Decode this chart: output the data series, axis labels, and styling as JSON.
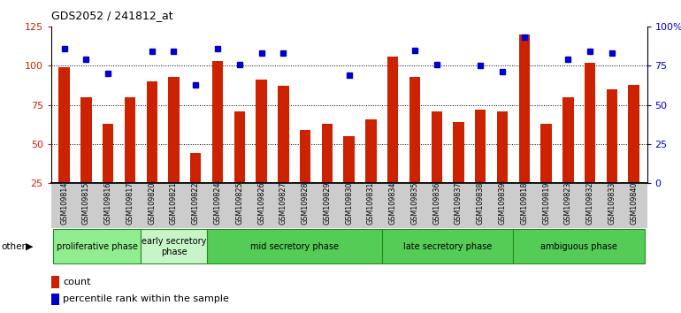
{
  "title": "GDS2052 / 241812_at",
  "samples": [
    "GSM109814",
    "GSM109815",
    "GSM109816",
    "GSM109817",
    "GSM109820",
    "GSM109821",
    "GSM109822",
    "GSM109824",
    "GSM109825",
    "GSM109826",
    "GSM109827",
    "GSM109828",
    "GSM109829",
    "GSM109830",
    "GSM109831",
    "GSM109834",
    "GSM109835",
    "GSM109836",
    "GSM109837",
    "GSM109838",
    "GSM109839",
    "GSM109818",
    "GSM109819",
    "GSM109823",
    "GSM109832",
    "GSM109833",
    "GSM109840"
  ],
  "counts": [
    99,
    80,
    63,
    80,
    90,
    93,
    44,
    103,
    71,
    91,
    87,
    59,
    63,
    55,
    66,
    106,
    93,
    71,
    64,
    72,
    71,
    120,
    63,
    80,
    102,
    85,
    88
  ],
  "percentiles": [
    86,
    79,
    70,
    null,
    84,
    84,
    63,
    86,
    76,
    83,
    83,
    null,
    null,
    69,
    null,
    null,
    85,
    76,
    null,
    75,
    71,
    93,
    null,
    79,
    84,
    83,
    null
  ],
  "phases": [
    {
      "label": "proliferative phase",
      "start": 0,
      "end": 4,
      "color": "#90EE90"
    },
    {
      "label": "early secretory\nphase",
      "start": 4,
      "end": 7,
      "color": "#c8f5c8"
    },
    {
      "label": "mid secretory phase",
      "start": 7,
      "end": 15,
      "color": "#55CC55"
    },
    {
      "label": "late secretory phase",
      "start": 15,
      "end": 21,
      "color": "#55CC55"
    },
    {
      "label": "ambiguous phase",
      "start": 21,
      "end": 27,
      "color": "#55CC55"
    }
  ],
  "bar_color": "#CC2200",
  "dot_color": "#0000CC",
  "ylim": [
    25,
    125
  ],
  "yticks_left": [
    25,
    50,
    75,
    100,
    125
  ],
  "yticks_right_vals": [
    0,
    25,
    50,
    75,
    100
  ],
  "yticks_right_labels": [
    "0",
    "25",
    "50",
    "75",
    "100%"
  ],
  "left_tick_color": "#CC2200",
  "right_tick_color": "#0000CC",
  "dotted_lines": [
    50,
    75,
    100
  ],
  "bar_bottom": 25
}
